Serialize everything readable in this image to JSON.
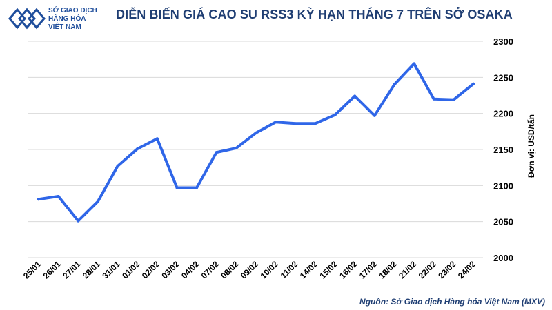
{
  "header": {
    "logo_lines": [
      "SỞ GIAO DỊCH",
      "HÀNG HÓA",
      "VIỆT NAM"
    ],
    "title": "DIỄN BIẾN GIÁ CAO SU RSS3 KỲ HẠN THÁNG 7 TRÊN SỞ OSAKA"
  },
  "footer": {
    "source": "Nguồn: Sở Giao dịch Hàng hóa Việt Nam (MXV)"
  },
  "colors": {
    "line": "#2f66e8",
    "grid": "#d9d9d9",
    "title": "#1f3e73",
    "logo": "#1f4e9c"
  },
  "chart_data": {
    "type": "line",
    "title": "DIỄN BIẾN GIÁ CAO SU RSS3 KỲ HẠN THÁNG 7 TRÊN SỞ OSAKA",
    "xlabel": "",
    "ylabel": "Đơn vị: USD/tấn",
    "ylim": [
      2000,
      2300
    ],
    "yticks": [
      2000,
      2050,
      2100,
      2150,
      2200,
      2250,
      2300
    ],
    "grid": "horizontal",
    "y_axis_side": "right",
    "categories": [
      "25/01",
      "26/01",
      "27/01",
      "28/01",
      "31/01",
      "01/02",
      "02/02",
      "03/02",
      "04/02",
      "07/02",
      "08/02",
      "09/02",
      "10/02",
      "11/02",
      "14/02",
      "15/02",
      "16/02",
      "17/02",
      "18/02",
      "21/02",
      "22/02",
      "23/02",
      "24/02"
    ],
    "series": [
      {
        "values": [
          2081,
          2085,
          2051,
          2078,
          2127,
          2151,
          2165,
          2097,
          2097,
          2146,
          2152,
          2173,
          2188,
          2186,
          2186,
          2198,
          2224,
          2197,
          2240,
          2269,
          2220,
          2219,
          2241
        ]
      }
    ]
  }
}
